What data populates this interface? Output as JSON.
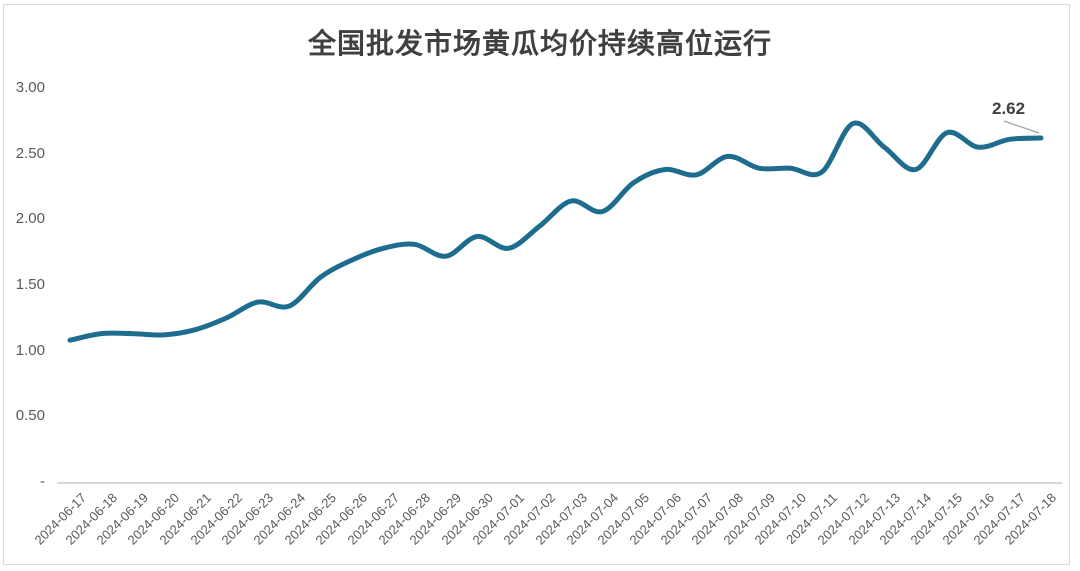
{
  "chart_data": {
    "type": "line",
    "title": "全国批发市场黄瓜均价持续高位运行",
    "x": [
      "2024-06-17",
      "2024-06-18",
      "2024-06-19",
      "2024-06-20",
      "2024-06-21",
      "2024-06-22",
      "2024-06-23",
      "2024-06-24",
      "2024-06-25",
      "2024-06-26",
      "2024-06-27",
      "2024-06-28",
      "2024-06-29",
      "2024-06-30",
      "2024-07-01",
      "2024-07-02",
      "2024-07-03",
      "2024-07-04",
      "2024-07-05",
      "2024-07-06",
      "2024-07-07",
      "2024-07-08",
      "2024-07-09",
      "2024-07-10",
      "2024-07-11",
      "2024-07-12",
      "2024-07-13",
      "2024-07-14",
      "2024-07-15",
      "2024-07-16",
      "2024-07-17",
      "2024-07-18"
    ],
    "values": [
      1.08,
      1.13,
      1.13,
      1.12,
      1.16,
      1.25,
      1.37,
      1.34,
      1.56,
      1.69,
      1.78,
      1.81,
      1.72,
      1.87,
      1.78,
      1.95,
      2.14,
      2.06,
      2.28,
      2.38,
      2.34,
      2.48,
      2.39,
      2.39,
      2.36,
      2.73,
      2.55,
      2.38,
      2.66,
      2.55,
      2.61,
      2.62
    ],
    "y_ticks": [
      {
        "label": "3.00",
        "value": 3.0
      },
      {
        "label": "2.50",
        "value": 2.5
      },
      {
        "label": "2.00",
        "value": 2.0
      },
      {
        "label": "1.50",
        "value": 1.5
      },
      {
        "label": "1.00",
        "value": 1.0
      },
      {
        "label": "0.50",
        "value": 0.5
      },
      {
        "label": "-",
        "value": 0.0
      }
    ],
    "ylim": [
      0,
      3.0
    ],
    "xlabel": "",
    "ylabel": "",
    "grid": "off",
    "legend": "none",
    "end_label": "2.62",
    "line_color": "#1e6c8e",
    "axis_color": "#d9d9d9",
    "tick_color": "#595959",
    "title_color": "#404040",
    "end_label_color": "#404040",
    "leader_color": "#a0a0a0"
  }
}
